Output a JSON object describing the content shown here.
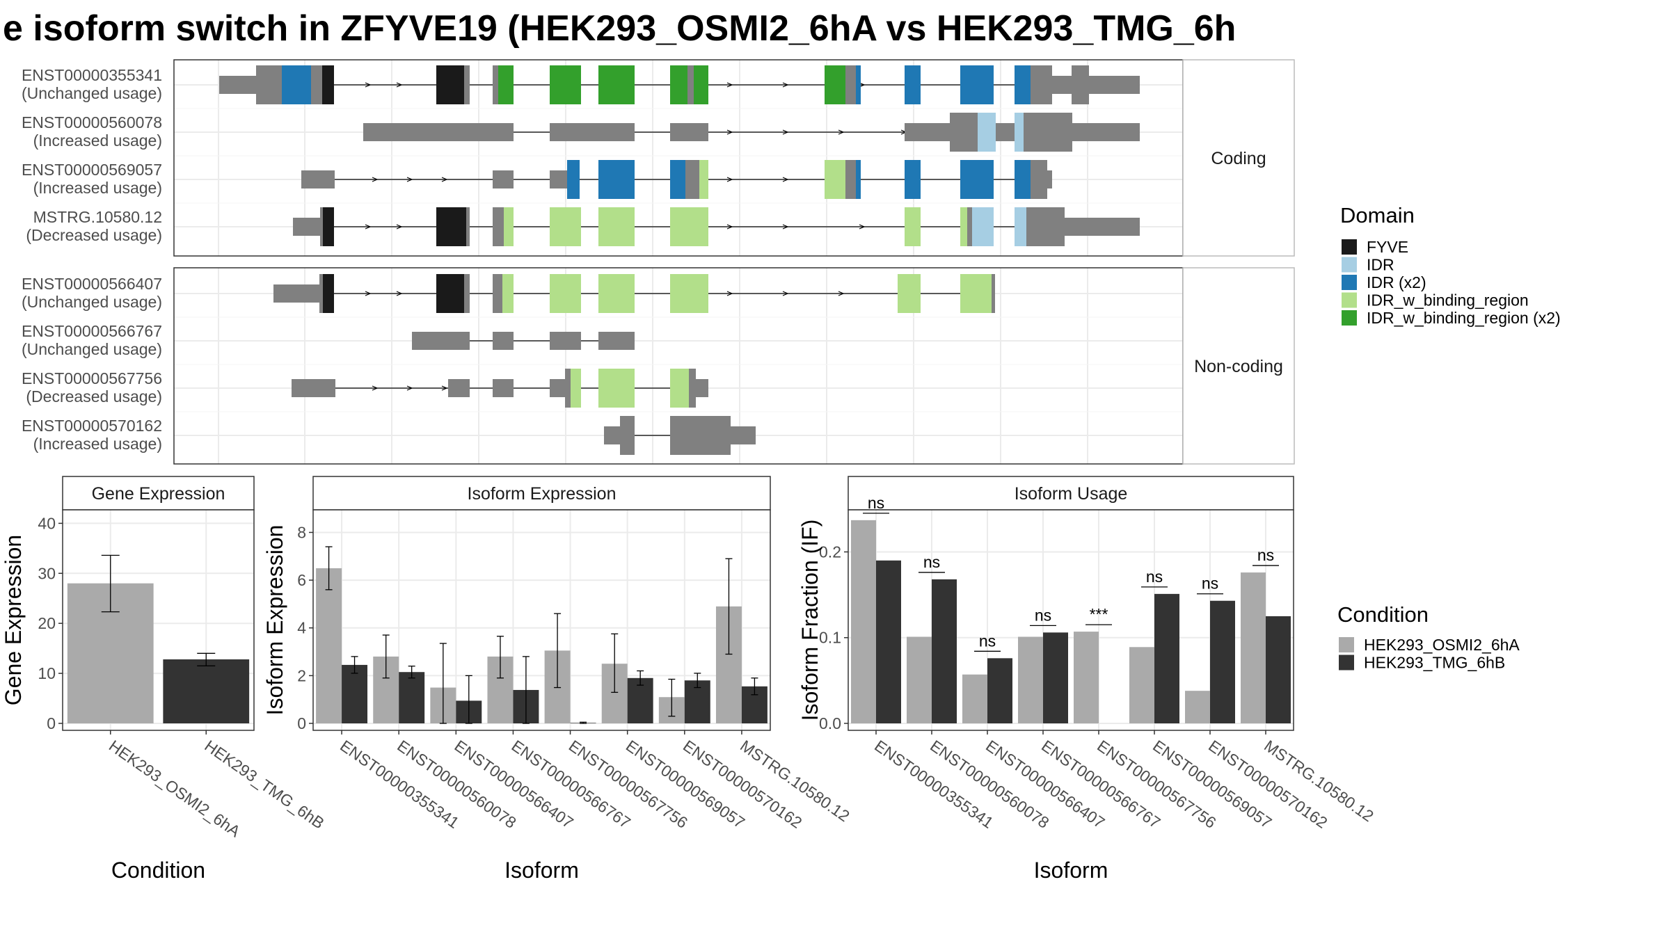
{
  "title": "e isoform switch in ZFYVE19 (HEK293_OSMI2_6hA vs HEK293_TMG_6h",
  "colors": {
    "utr": "#808080",
    "FYVE": "#1a1a1a",
    "IDR": "#a6cee3",
    "IDR (x2)": "#1f78b4",
    "IDR_w_binding_region": "#b2df8a",
    "IDR_w_binding_region (x2)": "#33a02c",
    "cond1": "#aaaaaa",
    "cond2": "#333333"
  },
  "structure": {
    "panels": [
      {
        "strip": "Coding",
        "transcripts": [
          {
            "id": "ENST00000355341",
            "usage": "(Unchanged usage)"
          },
          {
            "id": "ENST00000560078",
            "usage": "(Increased usage)"
          },
          {
            "id": "ENST00000569057",
            "usage": "(Increased usage)"
          },
          {
            "id": "MSTRG.10580.12",
            "usage": "(Decreased usage)"
          }
        ]
      },
      {
        "strip": "Non-coding",
        "transcripts": [
          {
            "id": "ENST00000566407",
            "usage": "(Unchanged usage)"
          },
          {
            "id": "ENST00000566767",
            "usage": "(Unchanged usage)"
          },
          {
            "id": "ENST00000567756",
            "usage": "(Decreased usage)"
          },
          {
            "id": "ENST00000570162",
            "usage": "(Increased usage)"
          }
        ]
      }
    ],
    "domain_legend": {
      "title": "Domain",
      "items": [
        "FYVE",
        "IDR",
        "IDR (x2)",
        "IDR_w_binding_region",
        "IDR_w_binding_region (x2)"
      ]
    }
  },
  "chart_data": [
    {
      "type": "bar",
      "title": "Gene Expression",
      "xlabel": "Condition",
      "ylabel": "Gene Expression",
      "ylim": [
        0,
        42
      ],
      "yticks": [
        0,
        10,
        20,
        30,
        40
      ],
      "categories": [
        "HEK293_OSMI2_6hA",
        "HEK293_TMG_6hB"
      ],
      "values": [
        28.0,
        12.8
      ],
      "error_low": [
        22.3,
        11.5
      ],
      "error_high": [
        33.6,
        14.0
      ]
    },
    {
      "type": "bar",
      "title": "Isoform Expression",
      "xlabel": "Isoform",
      "ylabel": "Isoform Expression",
      "ylim": [
        0,
        8.8
      ],
      "yticks": [
        0,
        2,
        4,
        6,
        8
      ],
      "categories": [
        "ENST00000355341",
        "ENST00000560078",
        "ENST00000566407",
        "ENST00000566767",
        "ENST00000567756",
        "ENST00000569057",
        "ENST00000570162",
        "MSTRG.10580.12"
      ],
      "series": [
        {
          "name": "HEK293_OSMI2_6hA",
          "values": [
            6.5,
            2.8,
            1.5,
            2.8,
            3.05,
            2.5,
            1.1,
            4.9
          ],
          "error_low": [
            5.6,
            1.9,
            0.0,
            1.9,
            1.5,
            1.3,
            0.3,
            2.9
          ],
          "error_high": [
            7.4,
            3.7,
            3.35,
            3.65,
            4.6,
            3.75,
            1.85,
            6.9
          ]
        },
        {
          "name": "HEK293_TMG_6hB",
          "values": [
            2.45,
            2.15,
            0.95,
            1.4,
            0.02,
            1.9,
            1.8,
            1.55
          ],
          "error_low": [
            2.1,
            1.9,
            0.0,
            0.0,
            0.0,
            1.6,
            1.5,
            1.2
          ],
          "error_high": [
            2.8,
            2.4,
            2.0,
            2.8,
            0.05,
            2.2,
            2.1,
            1.9
          ]
        }
      ]
    },
    {
      "type": "bar",
      "title": "Isoform Usage",
      "xlabel": "Isoform",
      "ylabel": "Isoform Fraction (IF)",
      "ylim": [
        0,
        0.245
      ],
      "yticks": [
        0.0,
        0.1,
        0.2
      ],
      "ytick_labels": [
        "0.0",
        "0.1",
        "0.2"
      ],
      "categories": [
        "ENST00000355341",
        "ENST00000560078",
        "ENST00000566407",
        "ENST00000566767",
        "ENST00000567756",
        "ENST00000569057",
        "ENST00000570162",
        "MSTRG.10580.12"
      ],
      "series": [
        {
          "name": "HEK293_OSMI2_6hA",
          "values": [
            0.237,
            0.101,
            0.057,
            0.101,
            0.107,
            0.089,
            0.038,
            0.176
          ]
        },
        {
          "name": "HEK293_TMG_6hB",
          "values": [
            0.19,
            0.168,
            0.076,
            0.106,
            0.0,
            0.151,
            0.143,
            0.125
          ]
        }
      ],
      "significance": [
        "ns",
        "ns",
        "ns",
        "ns",
        "***",
        "ns",
        "ns",
        "ns"
      ]
    }
  ],
  "condition_legend": {
    "title": "Condition",
    "items": [
      "HEK293_OSMI2_6hA",
      "HEK293_TMG_6hB"
    ]
  }
}
